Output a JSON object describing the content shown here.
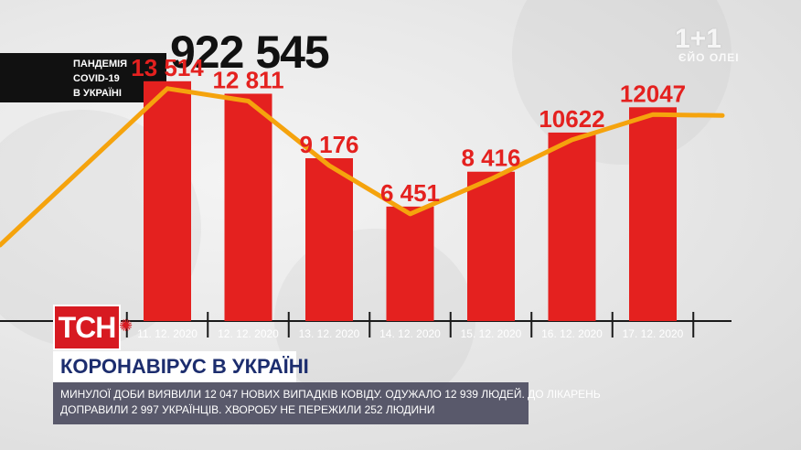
{
  "badge": {
    "line1": "ПАНДЕМІЯ",
    "line2": "COVID-19",
    "line3": "В УКРАЇНІ"
  },
  "total": "922 545",
  "logo": {
    "main": "1+1",
    "sub": "ЄЙО ОЛЕІ"
  },
  "colors": {
    "bar": "#e4211f",
    "line": "#f5a30d",
    "brand_red": "#d71a21",
    "headline_text": "#1c2d6e"
  },
  "tsn_label": "ТСН",
  "headline": "КОРОНАВІРУС В УКРАЇНІ",
  "ticker": {
    "line1": "МИНУЛОЇ ДОБИ ВИЯВИЛИ 12 047 НОВИХ ВИПАДКІВ КОВІДУ. ОДУЖАЛО 12 939 ЛЮДЕЙ. ДО ЛІКАРЕНЬ",
    "line2": "ДОПРАВИЛИ 2 997 УКРАЇНЦІВ. ХВОРОБУ НЕ ПЕРЕЖИЛИ 252 ЛЮДИНИ"
  },
  "chart_data": {
    "type": "bar",
    "categories": [
      "11. 12. 2020",
      "12. 12. 2020",
      "13. 12. 2020",
      "14. 12. 2020",
      "15. 12. 2020",
      "16. 12. 2020",
      "17. 12. 2020"
    ],
    "values": [
      13514,
      12811,
      9176,
      6451,
      8416,
      10622,
      12047
    ],
    "value_labels": [
      "13 514",
      "12 811",
      "9 176",
      "6 451",
      "8 416",
      "10622",
      "12047"
    ],
    "title": "",
    "xlabel": "",
    "ylabel": "",
    "ylim": [
      0,
      15000
    ],
    "grid": false,
    "legend": "none",
    "trend_line": true
  }
}
